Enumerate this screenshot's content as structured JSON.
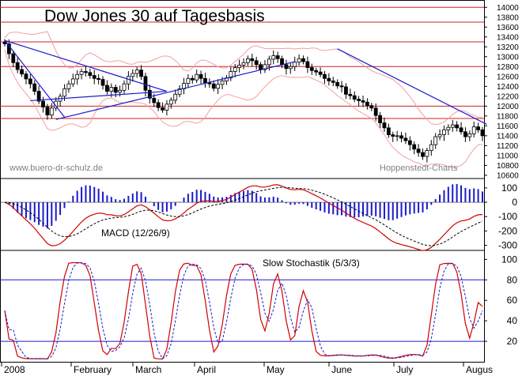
{
  "chart_data": {
    "type": "candlestick",
    "title": "Dow Jones 30 auf Tagesbasis",
    "watermark_left": "www.buero-dr-schulz.de",
    "watermark_right": "Hoppenstedt-Charts",
    "x_labels": [
      "2008",
      "February",
      "March",
      "April",
      "May",
      "June",
      "July",
      "Augus"
    ],
    "price_axis": {
      "ticks": [
        "10600",
        "10800",
        "11000",
        "11200",
        "11400",
        "11600",
        "11800",
        "12000",
        "12200",
        "12400",
        "12600",
        "12800",
        "13000",
        "13200",
        "13400",
        "13600",
        "13800",
        "14000"
      ],
      "ylim": [
        10550,
        14100
      ]
    },
    "resistance_levels": [
      14000,
      13700,
      13300,
      12800,
      12000,
      11750
    ],
    "series_closes": [
      13260,
      13060,
      12880,
      12740,
      12650,
      12550,
      12450,
      12300,
      12100,
      11980,
      11820,
      11960,
      12100,
      12200,
      12350,
      12450,
      12550,
      12640,
      12700,
      12680,
      12620,
      12560,
      12540,
      12420,
      12300,
      12380,
      12280,
      12320,
      12450,
      12600,
      12660,
      12730,
      12600,
      12320,
      12160,
      12070,
      11970,
      11920,
      12040,
      12120,
      12240,
      12350,
      12460,
      12560,
      12530,
      12640,
      12560,
      12470,
      12450,
      12360,
      12440,
      12510,
      12570,
      12700,
      12780,
      12830,
      12880,
      12960,
      12920,
      12840,
      12740,
      12840,
      12950,
      13020,
      12960,
      12840,
      12760,
      12800,
      12890,
      12960,
      12900,
      12780,
      12720,
      12690,
      12640,
      12560,
      12510,
      12480,
      12410,
      12390,
      12240,
      12210,
      12140,
      12110,
      12080,
      12010,
      11960,
      11810,
      11660,
      11560,
      11420,
      11390,
      11400,
      11350,
      11300,
      11220,
      11130,
      11060,
      10980,
      11100,
      11220,
      11380,
      11420,
      11520,
      11570,
      11620,
      11560,
      11480,
      11380,
      11440,
      11580,
      11520,
      11400
    ],
    "trendlines": [
      {
        "from": [
          0,
          13330
        ],
        "to": [
          38,
          12300
        ]
      },
      {
        "from": [
          6,
          12110
        ],
        "to": [
          38,
          12300
        ]
      },
      {
        "from": [
          12,
          11730
        ],
        "to": [
          68,
          12900
        ]
      },
      {
        "from": [
          0,
          13330
        ],
        "to": [
          14,
          11780
        ]
      },
      {
        "from": [
          78,
          13160
        ],
        "to": [
          113,
          11630
        ]
      }
    ],
    "macd": {
      "label": "MACD (12/26/9)",
      "ticks": [
        "-300",
        "-200",
        "-100",
        "0",
        "100"
      ],
      "ylim": [
        -330,
        160
      ]
    },
    "stochastic": {
      "label": "Slow Stochastik (5/3/3)",
      "ticks": [
        "20",
        "40",
        "60",
        "80",
        "100"
      ],
      "ylim": [
        0,
        108
      ],
      "levels": [
        20,
        80
      ]
    }
  }
}
